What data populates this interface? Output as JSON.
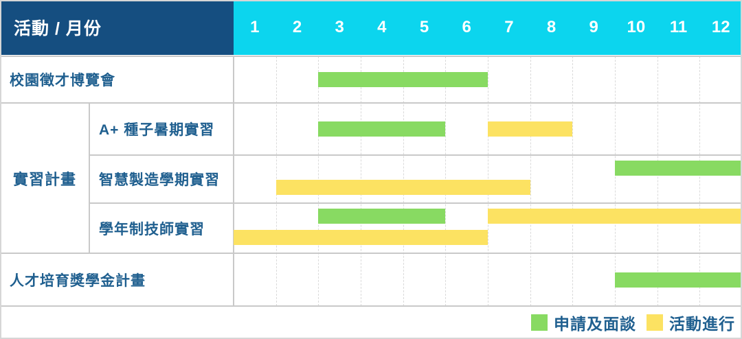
{
  "header": {
    "title": "活動 / 月份"
  },
  "colors": {
    "header_navy": "#154E80",
    "header_cyan": "#0CD5EE",
    "bar_green": "#88DA62",
    "bar_yellow": "#FCE262",
    "label_blue": "#1F5F8F",
    "grid_solid": "#C9C9C9",
    "grid_dashed": "#DADADA",
    "header_text": "#FFFFFF"
  },
  "chart_data": {
    "type": "bar",
    "variant": "gantt-timeline",
    "x_unit": "month",
    "x_range": [
      1,
      12
    ],
    "months": [
      "1",
      "2",
      "3",
      "4",
      "5",
      "6",
      "7",
      "8",
      "9",
      "10",
      "11",
      "12"
    ],
    "row_header": "活動 / 月份",
    "rows": [
      {
        "group": null,
        "label": "校園徵才博覽會",
        "bars": [
          {
            "series": "apply",
            "start_month": 3,
            "end_month": 6,
            "lane": "center"
          }
        ]
      },
      {
        "group": "實習計畫",
        "label": "A+ 種子暑期實習",
        "bars": [
          {
            "series": "apply",
            "start_month": 3,
            "end_month": 5,
            "lane": "center"
          },
          {
            "series": "activity",
            "start_month": 7,
            "end_month": 8,
            "lane": "center"
          }
        ]
      },
      {
        "group": "實習計畫",
        "label": "智慧製造學期實習",
        "bars": [
          {
            "series": "apply",
            "start_month": 10,
            "end_month": 12,
            "lane": "top"
          },
          {
            "series": "activity",
            "start_month": 2,
            "end_month": 7,
            "lane": "bottom"
          }
        ]
      },
      {
        "group": "實習計畫",
        "label": "學年制技師實習",
        "bars": [
          {
            "series": "apply",
            "start_month": 3,
            "end_month": 5,
            "lane": "top"
          },
          {
            "series": "activity",
            "start_month": 7,
            "end_month": 12,
            "lane": "top"
          },
          {
            "series": "activity",
            "start_month": 1,
            "end_month": 6,
            "lane": "bottom"
          }
        ]
      },
      {
        "group": null,
        "label": "人才培育獎學金計畫",
        "bars": [
          {
            "series": "apply",
            "start_month": 10,
            "end_month": 12,
            "lane": "center"
          }
        ]
      }
    ],
    "legend": [
      {
        "key": "apply",
        "label": "申請及面談",
        "color": "#88DA62"
      },
      {
        "key": "activity",
        "label": "活動進行",
        "color": "#FCE262"
      }
    ],
    "legend_position": "bottom-right",
    "grid": true
  }
}
